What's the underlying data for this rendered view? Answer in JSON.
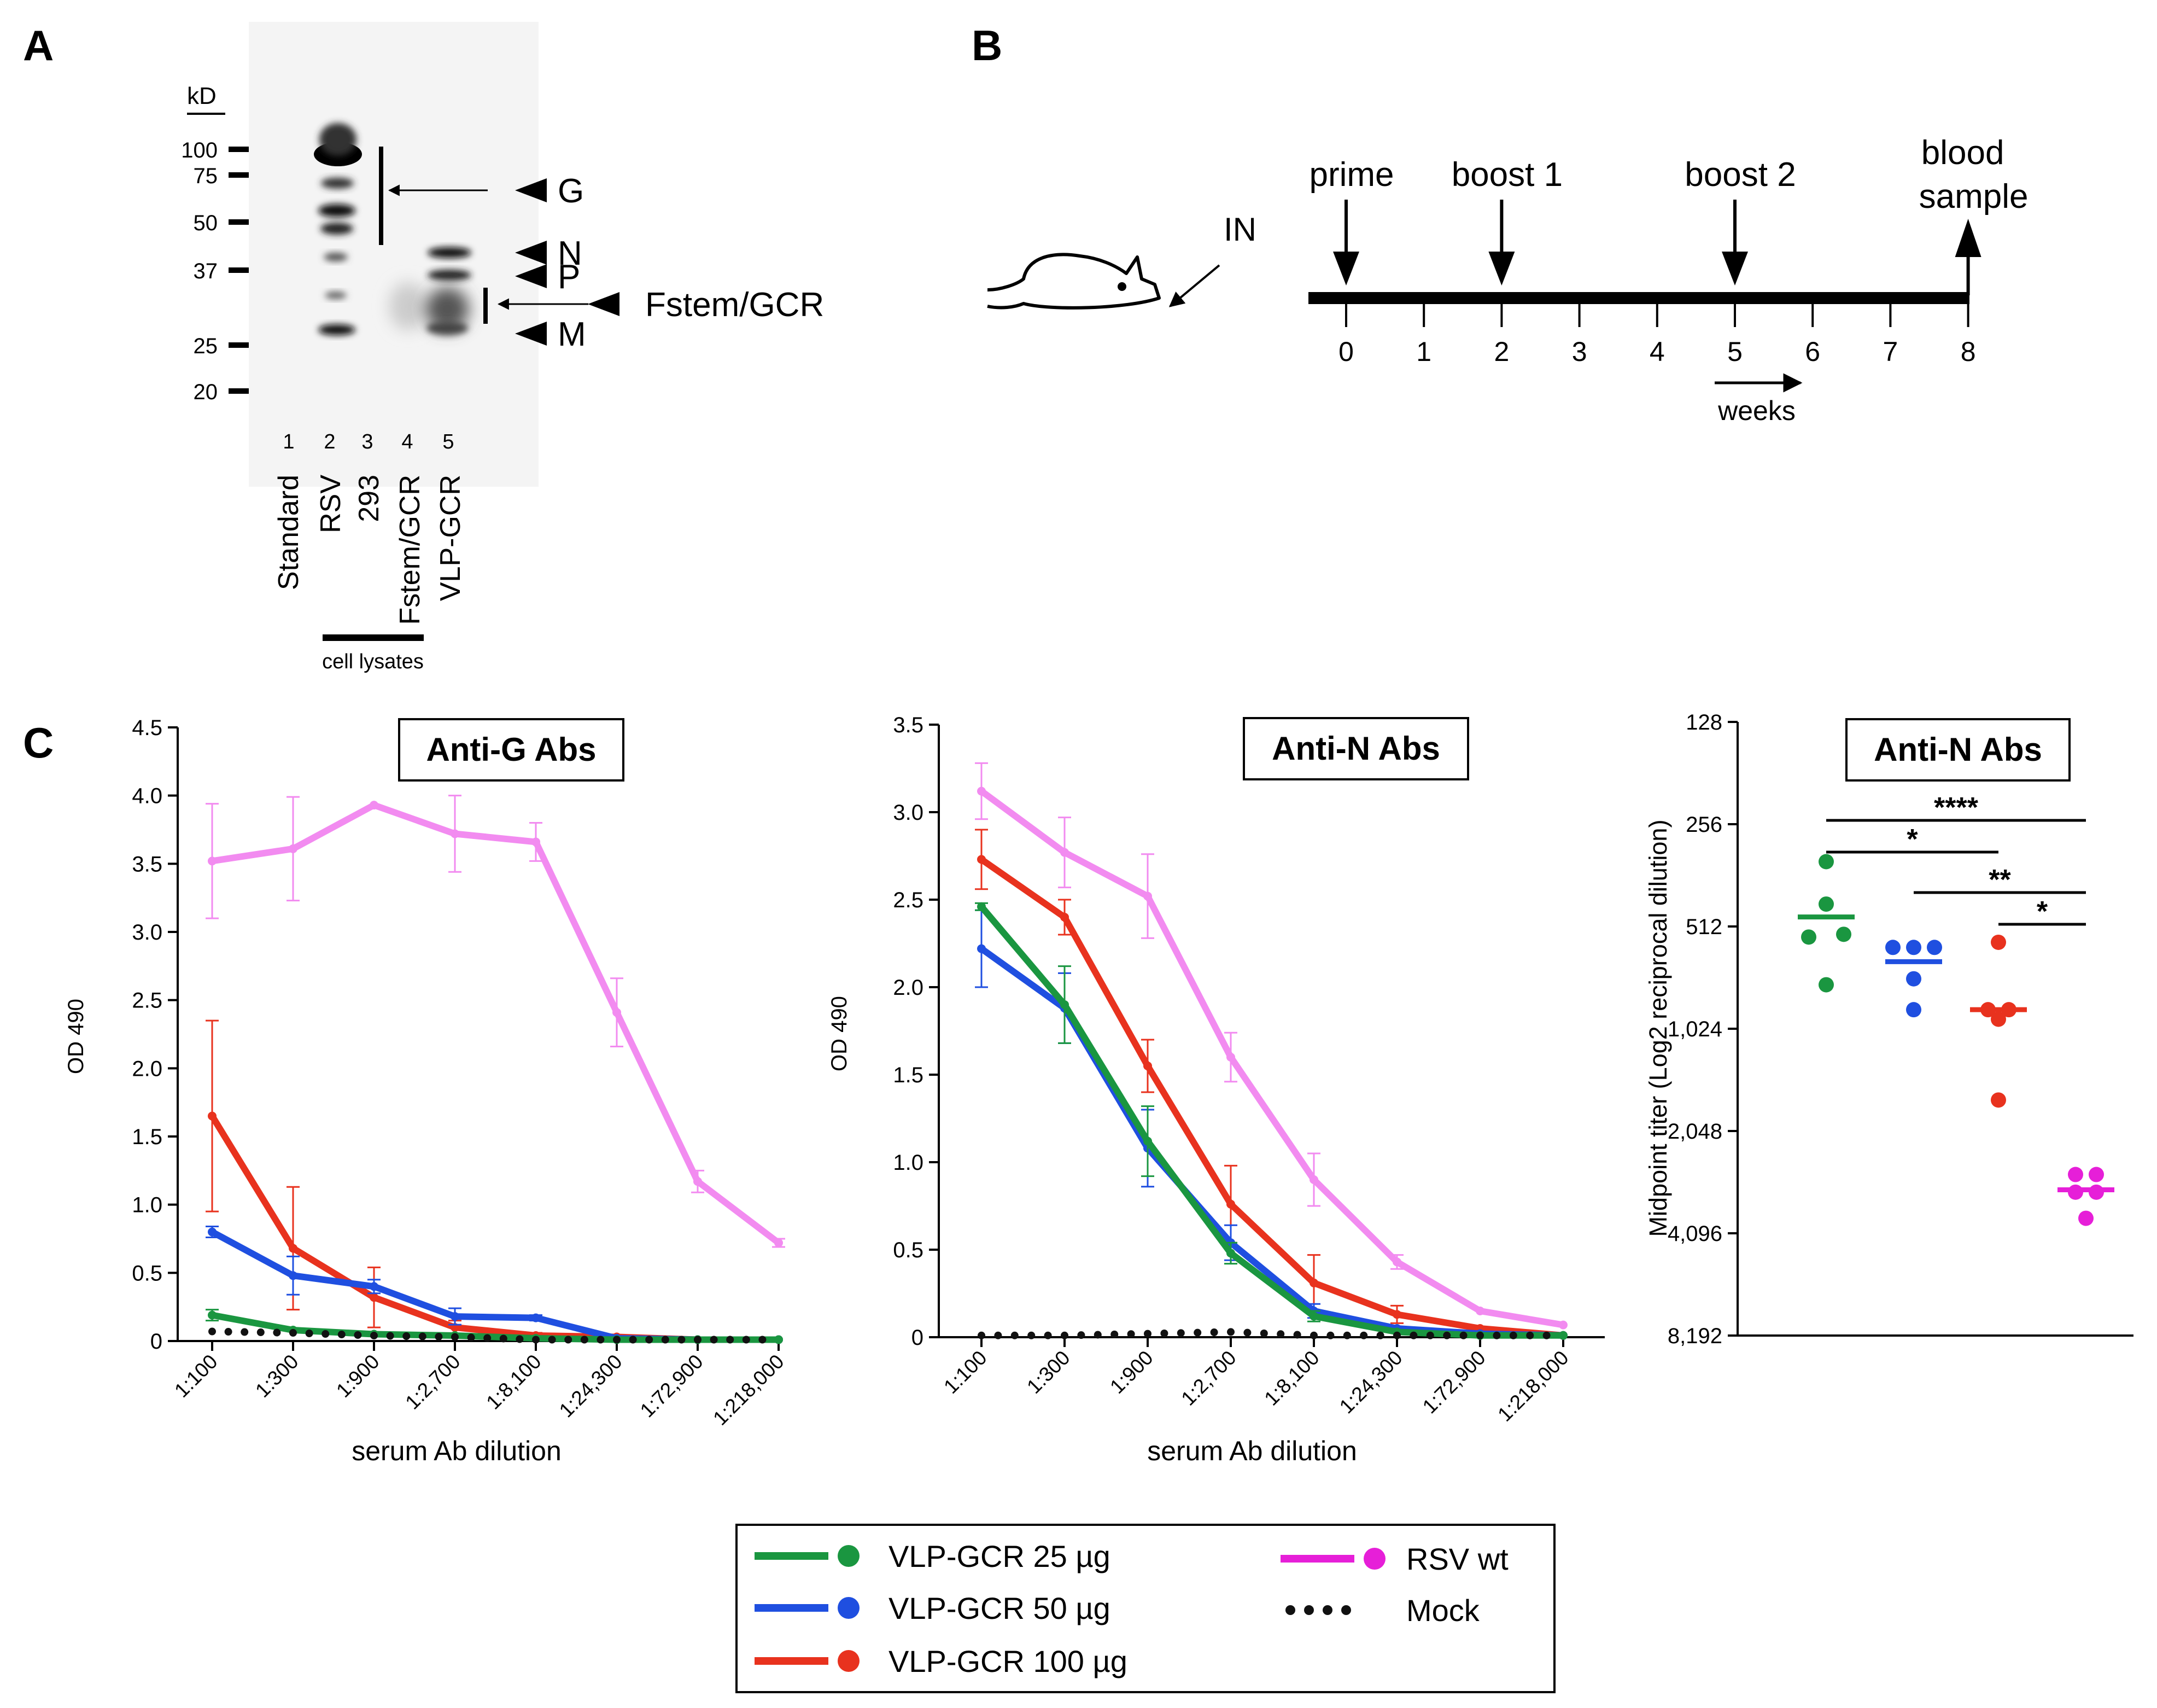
{
  "panels": {
    "a": "A",
    "b": "B",
    "c": "C"
  },
  "blot": {
    "kd_label": "kD",
    "markers": [
      "100",
      "75",
      "50",
      "37",
      "25",
      "20"
    ],
    "lane_numbers": [
      "1",
      "2",
      "3",
      "4",
      "5"
    ],
    "lane_names": [
      "Standard",
      "RSV",
      "293",
      "Fstem/GCR",
      "VLP-GCR"
    ],
    "bands": [
      "G",
      "N",
      "P",
      "Fstem/GCR",
      "M"
    ],
    "cell_lysates": "cell lysates"
  },
  "schedule": {
    "route": "IN",
    "events": [
      "prime",
      "boost 1",
      "boost 2",
      "blood",
      "sample"
    ],
    "weeks": [
      "0",
      "1",
      "2",
      "3",
      "4",
      "5",
      "6",
      "7",
      "8"
    ],
    "unit": "weeks"
  },
  "colors": {
    "g25": "#1a9640",
    "g50": "#1f4fe0",
    "g100": "#e8321e",
    "rsv": "#f28bf0",
    "rsv_dot": "#e61fd8",
    "mock": "#111111"
  },
  "chart_data": [
    {
      "type": "line",
      "title": "Anti-G Abs",
      "xlabel": "serum Ab dilution",
      "ylabel": "OD 490",
      "ylim": [
        0,
        4.5
      ],
      "yticks": [
        "0",
        "0.5",
        "1.0",
        "1.5",
        "2.0",
        "2.5",
        "3.0",
        "3.5",
        "4.0",
        "4.5"
      ],
      "categories": [
        "1:100",
        "1:300",
        "1:900",
        "1:2,700",
        "1:8,100",
        "1:24,300",
        "1:72,900",
        "1:218,000"
      ],
      "series": [
        {
          "name": "RSV wt",
          "values": [
            3.52,
            3.61,
            3.93,
            3.72,
            3.66,
            2.41,
            1.17,
            0.72
          ],
          "errors": [
            0.42,
            0.38,
            0,
            0.28,
            0.14,
            0.25,
            0.08,
            0.03
          ]
        },
        {
          "name": "VLP-GCR 100 µg",
          "values": [
            1.65,
            0.68,
            0.32,
            0.1,
            0.04,
            0.03,
            0.01,
            0.01
          ],
          "errors": [
            0.7,
            0.45,
            0.22,
            0.05,
            0.02,
            0.01,
            0,
            0
          ]
        },
        {
          "name": "VLP-GCR 50 µg",
          "values": [
            0.8,
            0.48,
            0.4,
            0.18,
            0.17,
            0.02,
            0.01,
            0.01
          ],
          "errors": [
            0.04,
            0.14,
            0.05,
            0.06,
            0.02,
            0.01,
            0,
            0
          ]
        },
        {
          "name": "VLP-GCR 25 µg",
          "values": [
            0.19,
            0.08,
            0.05,
            0.04,
            0.02,
            0.01,
            0.01,
            0.01
          ],
          "errors": [
            0.04,
            0.01,
            0.01,
            0.01,
            0,
            0,
            0,
            0
          ]
        },
        {
          "name": "Mock",
          "values": [
            0.07,
            0.06,
            0.04,
            0.03,
            0.01,
            0.01,
            0.01,
            0.01
          ],
          "errors": [
            0,
            0,
            0,
            0,
            0,
            0,
            0,
            0
          ]
        }
      ]
    },
    {
      "type": "line",
      "title": "Anti-N Abs",
      "xlabel": "serum Ab dilution",
      "ylabel": "OD 490",
      "ylim": [
        0,
        3.5
      ],
      "yticks": [
        "0",
        "0.5",
        "1.0",
        "1.5",
        "2.0",
        "2.5",
        "3.0",
        "3.5"
      ],
      "categories": [
        "1:100",
        "1:300",
        "1:900",
        "1:2,700",
        "1:8,100",
        "1:24,300",
        "1:72,900",
        "1:218,000"
      ],
      "series": [
        {
          "name": "RSV wt",
          "values": [
            3.12,
            2.77,
            2.52,
            1.6,
            0.9,
            0.43,
            0.15,
            0.07
          ],
          "errors": [
            0.16,
            0.2,
            0.24,
            0.14,
            0.15,
            0.04,
            0,
            0
          ]
        },
        {
          "name": "VLP-GCR 100 µg",
          "values": [
            2.73,
            2.4,
            1.55,
            0.76,
            0.31,
            0.13,
            0.05,
            0.01
          ],
          "errors": [
            0.17,
            0.1,
            0.15,
            0.22,
            0.16,
            0.05,
            0,
            0
          ]
        },
        {
          "name": "VLP-GCR 50 µg",
          "values": [
            2.22,
            1.88,
            1.08,
            0.54,
            0.15,
            0.05,
            0.02,
            0.01
          ],
          "errors": [
            0.22,
            0.2,
            0.22,
            0.1,
            0.04,
            0,
            0,
            0
          ]
        },
        {
          "name": "VLP-GCR 25 µg",
          "values": [
            2.46,
            1.9,
            1.12,
            0.48,
            0.12,
            0.03,
            0.01,
            0.01
          ],
          "errors": [
            0.02,
            0.22,
            0.2,
            0.06,
            0.03,
            0,
            0,
            0
          ]
        },
        {
          "name": "Mock",
          "values": [
            0.01,
            0.01,
            0.02,
            0.03,
            0.01,
            0.01,
            0.01,
            0.01
          ],
          "errors": [
            0,
            0,
            0,
            0,
            0,
            0,
            0,
            0
          ]
        }
      ]
    },
    {
      "type": "scatter",
      "title": "Anti-N Abs",
      "ylabel": "Midpoint titer (Log2 reciprocal dilution)",
      "y_scale": "log2, inverted",
      "yticks": [
        "128",
        "256",
        "512",
        "1,024",
        "2,048",
        "4,096",
        "8,192"
      ],
      "ylim": [
        128,
        8192
      ],
      "groups": [
        {
          "name": "VLP-GCR 25 µg",
          "points": [
            330,
            440,
            540,
            550,
            760
          ],
          "mean": 480
        },
        {
          "name": "VLP-GCR 50 µg",
          "points": [
            590,
            590,
            590,
            730,
            900
          ],
          "mean": 650
        },
        {
          "name": "VLP-GCR 100 µg",
          "points": [
            570,
            900,
            900,
            960,
            1660
          ],
          "mean": 900
        },
        {
          "name": "RSV wt",
          "points": [
            2750,
            2750,
            3100,
            3100,
            3700
          ],
          "mean": 3050
        }
      ],
      "significance": [
        "****",
        "*",
        "**",
        "*"
      ]
    }
  ],
  "legend": [
    {
      "label": "VLP-GCR  25 µg",
      "style": "line"
    },
    {
      "label": "VLP-GCR  50 µg",
      "style": "line"
    },
    {
      "label": "VLP-GCR 100 µg",
      "style": "line"
    },
    {
      "label": "RSV wt",
      "style": "line"
    },
    {
      "label": "Mock",
      "style": "dots"
    }
  ]
}
